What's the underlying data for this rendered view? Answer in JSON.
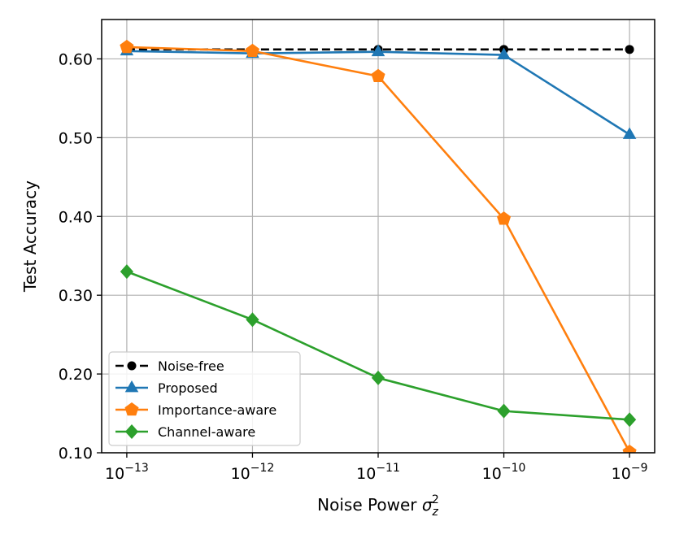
{
  "chart_data": {
    "type": "line",
    "title": "",
    "xlabel": "Noise Power",
    "xlabel_symbol": "σ",
    "xlabel_sub": "z",
    "xlabel_sup": "2",
    "ylabel": "Test Accuracy",
    "x_scale": "log",
    "x_ticks": [
      {
        "base": "10",
        "exp": "−13"
      },
      {
        "base": "10",
        "exp": "−12"
      },
      {
        "base": "10",
        "exp": "−11"
      },
      {
        "base": "10",
        "exp": "−10"
      },
      {
        "base": "10",
        "exp": "−9"
      }
    ],
    "x_log_values": [
      -13,
      -12,
      -11,
      -10,
      -9
    ],
    "xlim_log": [
      -13.2,
      -8.8
    ],
    "ylim": [
      0.1,
      0.65
    ],
    "y_ticks": [
      0.1,
      0.2,
      0.3,
      0.4,
      0.5,
      0.6
    ],
    "y_tick_labels": [
      "0.10",
      "0.20",
      "0.30",
      "0.40",
      "0.50",
      "0.60"
    ],
    "grid": true,
    "legend_position": "lower-left",
    "series": [
      {
        "name": "Noise-free",
        "color": "#000000",
        "dash": true,
        "marker": "circle",
        "values": [
          0.612,
          0.612,
          0.612,
          0.612,
          0.612
        ]
      },
      {
        "name": "Proposed",
        "color": "#1f77b4",
        "dash": false,
        "marker": "triangle",
        "values": [
          0.61,
          0.607,
          0.609,
          0.605,
          0.504
        ]
      },
      {
        "name": "Importance-aware",
        "color": "#ff7f0e",
        "dash": false,
        "marker": "pentagon",
        "values": [
          0.615,
          0.61,
          0.578,
          0.397,
          0.101
        ]
      },
      {
        "name": "Channel-aware",
        "color": "#2ca02c",
        "dash": false,
        "marker": "diamond",
        "values": [
          0.33,
          0.269,
          0.195,
          0.153,
          0.142
        ]
      }
    ]
  }
}
